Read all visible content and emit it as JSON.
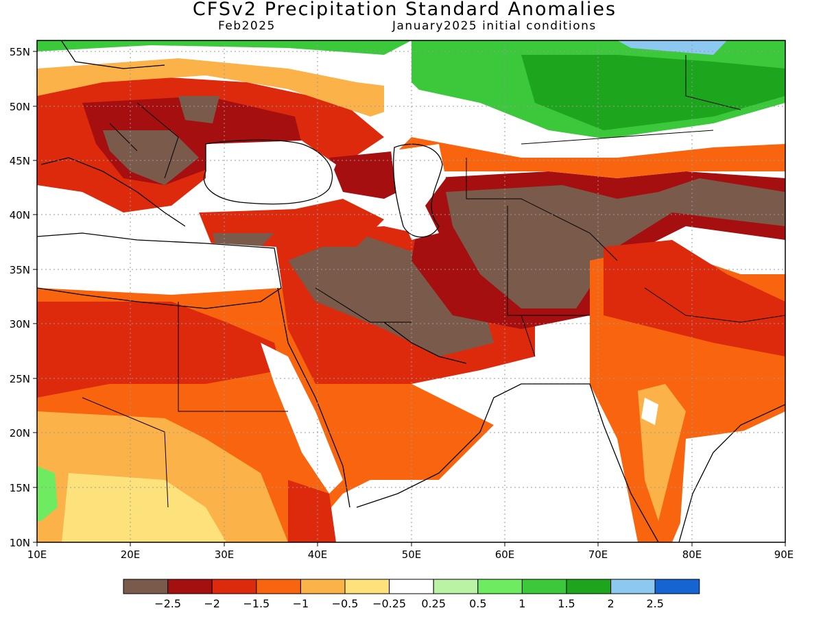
{
  "header": {
    "title": "CFSv2 Precipitation Standard Anomalies",
    "valid_month": "Feb2025",
    "init_conditions": "January2025 initial conditions"
  },
  "map": {
    "lat_ticks": [
      "55N",
      "50N",
      "45N",
      "40N",
      "35N",
      "30N",
      "25N",
      "20N",
      "15N",
      "10N"
    ],
    "lon_ticks": [
      "10E",
      "20E",
      "30E",
      "40E",
      "50E",
      "60E",
      "70E",
      "80E",
      "90E"
    ],
    "lon_range": [
      10,
      90
    ],
    "lat_range": [
      10,
      56
    ]
  },
  "colorbar": {
    "colors": [
      "#7a5a4a",
      "#a50f0f",
      "#dd2a0c",
      "#f8650e",
      "#fbb248",
      "#fde27c",
      "#ffffff",
      "#b9f3a3",
      "#6feb61",
      "#3bc93b",
      "#1ea51e",
      "#8cc8f0",
      "#1464d2"
    ],
    "labels": [
      "−2.5",
      "−2",
      "−1.5",
      "−1",
      "−0.5",
      "−0.25",
      "0.25",
      "0.5",
      "1",
      "1.5",
      "2",
      "2.5"
    ]
  }
}
